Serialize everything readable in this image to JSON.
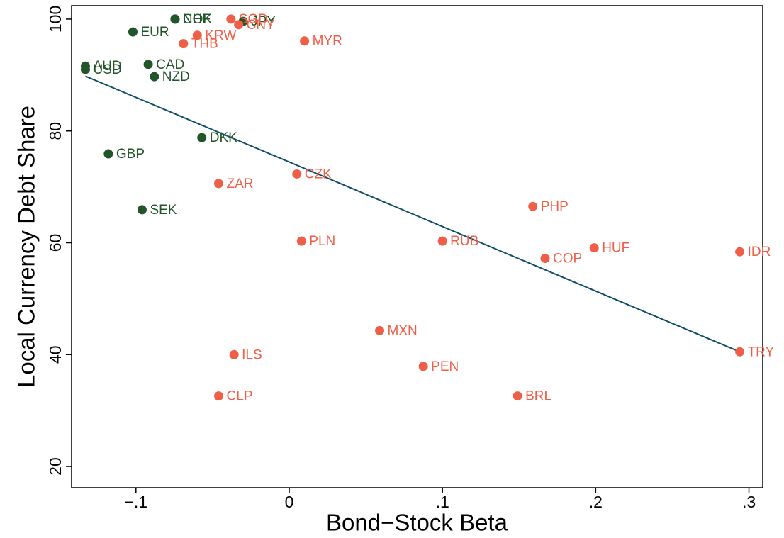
{
  "chart_data": {
    "type": "scatter",
    "x_label": "Bond−Stock Beta",
    "y_label": "Local Currency Debt Share",
    "xlim": [
      -0.142,
      0.309
    ],
    "ylim": [
      16.2,
      102.4
    ],
    "xticks": [
      {
        "value": -0.1,
        "label": "−.1"
      },
      0,
      {
        "value": 0.1,
        "label": ".1"
      },
      {
        "value": 0.2,
        "label": ".2"
      },
      {
        "value": 0.3,
        "label": ".3"
      }
    ],
    "yticks": [
      20,
      40,
      60,
      80,
      100
    ],
    "series": [
      {
        "color": "#22552a",
        "labels": [
          "NOK",
          "CHF",
          "JPY",
          "EUR",
          "CAD",
          "AUD",
          "USD",
          "NZD",
          "DKK",
          "GBP",
          "SEK"
        ],
        "x": [
          -0.0745,
          -0.0745,
          -0.03,
          -0.102,
          -0.092,
          -0.133,
          -0.133,
          -0.088,
          -0.057,
          -0.118,
          -0.096
        ],
        "values": [
          100,
          100,
          99.6,
          97.7,
          91.9,
          91.6,
          91.0,
          89.7,
          78.8,
          75.9,
          65.9
        ]
      },
      {
        "color": "#ef5f48",
        "labels": [
          "SGD",
          "CNY",
          "KRW",
          "THB",
          "MYR",
          "CZK",
          "ZAR",
          "PHP",
          "PLN",
          "RUB",
          "HUF",
          "COP",
          "IDR",
          "MXN",
          "ILS",
          "PEN",
          "TRY",
          "BRL",
          "CLP"
        ],
        "x": [
          -0.038,
          -0.033,
          -0.06,
          -0.069,
          0.01,
          0.005,
          -0.046,
          0.159,
          0.008,
          0.1,
          0.199,
          0.167,
          0.294,
          0.059,
          -0.036,
          0.0875,
          0.294,
          0.149,
          -0.046
        ],
        "values": [
          100,
          99.0,
          97.1,
          95.6,
          96.1,
          72.3,
          70.6,
          66.5,
          60.3,
          60.3,
          59.1,
          57.2,
          58.4,
          44.3,
          40.0,
          37.9,
          40.5,
          32.6,
          32.6
        ]
      }
    ],
    "fit_line": {
      "color": "#0e4d66",
      "x": [
        -0.133,
        0.294
      ],
      "values": [
        89.8,
        40.5
      ]
    }
  }
}
